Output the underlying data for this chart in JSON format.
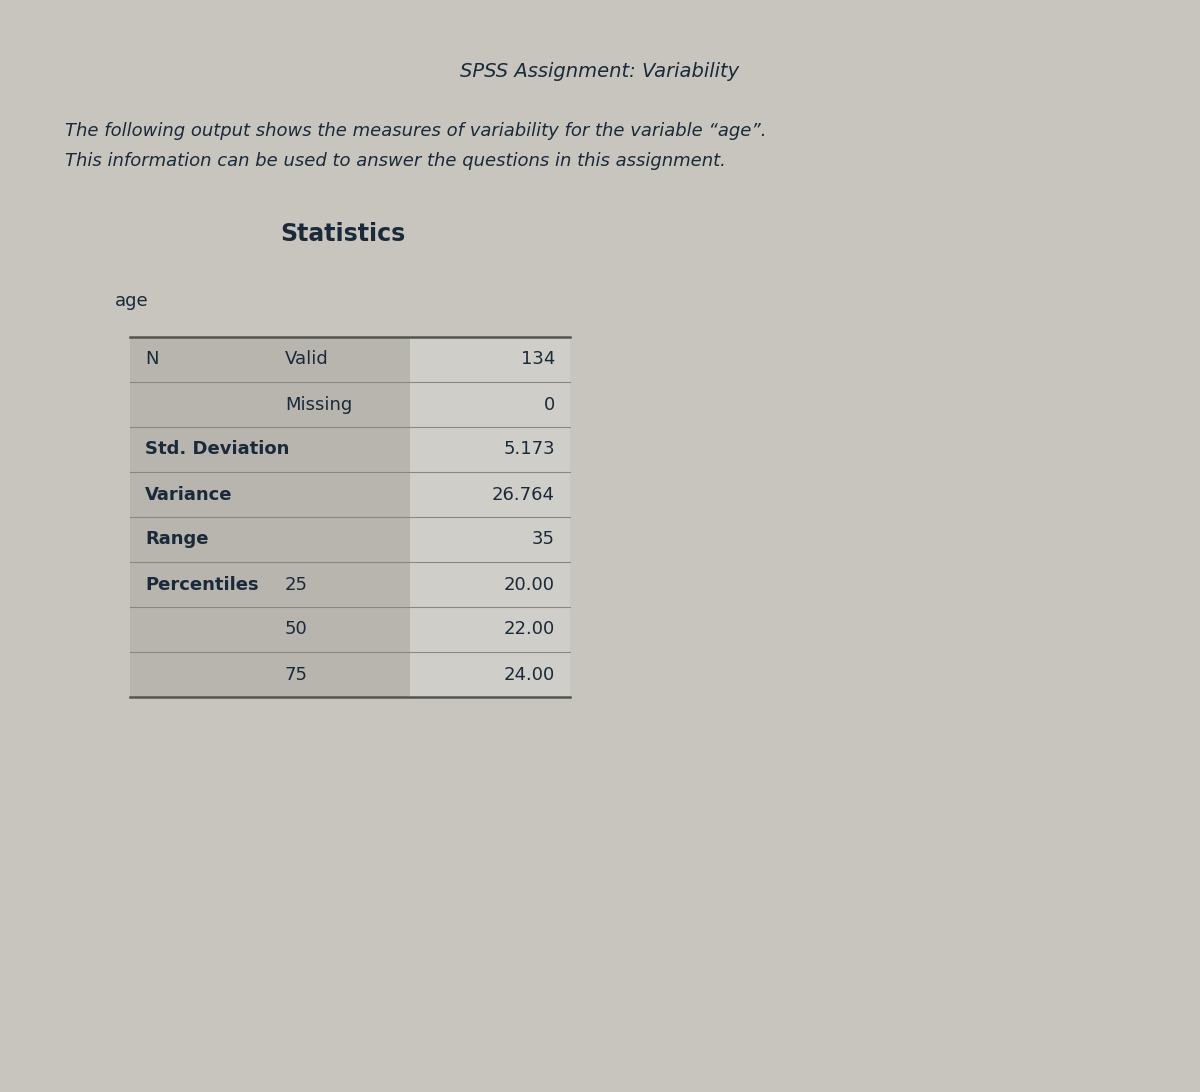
{
  "title": "SPSS Assignment: Variability",
  "subtitle_line1": "The following output shows the measures of variability for the variable “age”.",
  "subtitle_line2": "This information can be used to answer the questions in this assignment.",
  "section_title": "Statistics",
  "variable_label": "age",
  "table": {
    "rows": [
      {
        "col1": "N",
        "col2": "Valid",
        "col3": "134"
      },
      {
        "col1": "",
        "col2": "Missing",
        "col3": "0"
      },
      {
        "col1": "Std. Deviation",
        "col2": "",
        "col3": "5.173"
      },
      {
        "col1": "Variance",
        "col2": "",
        "col3": "26.764"
      },
      {
        "col1": "Range",
        "col2": "",
        "col3": "35"
      },
      {
        "col1": "Percentiles",
        "col2": "25",
        "col3": "20.00"
      },
      {
        "col1": "",
        "col2": "50",
        "col3": "22.00"
      },
      {
        "col1": "",
        "col2": "75",
        "col3": "24.00"
      }
    ]
  },
  "bg_color": "#c8c5be",
  "table_left_bg": "#b8b5ae",
  "table_right_bg": "#d0cec8",
  "text_color": "#1a2a3a",
  "line_color": "#888880",
  "title_fontsize": 14,
  "subtitle_fontsize": 13,
  "section_title_fontsize": 17,
  "var_label_fontsize": 13,
  "table_fontsize": 13,
  "fig_width": 12.0,
  "fig_height": 10.92,
  "dpi": 100
}
